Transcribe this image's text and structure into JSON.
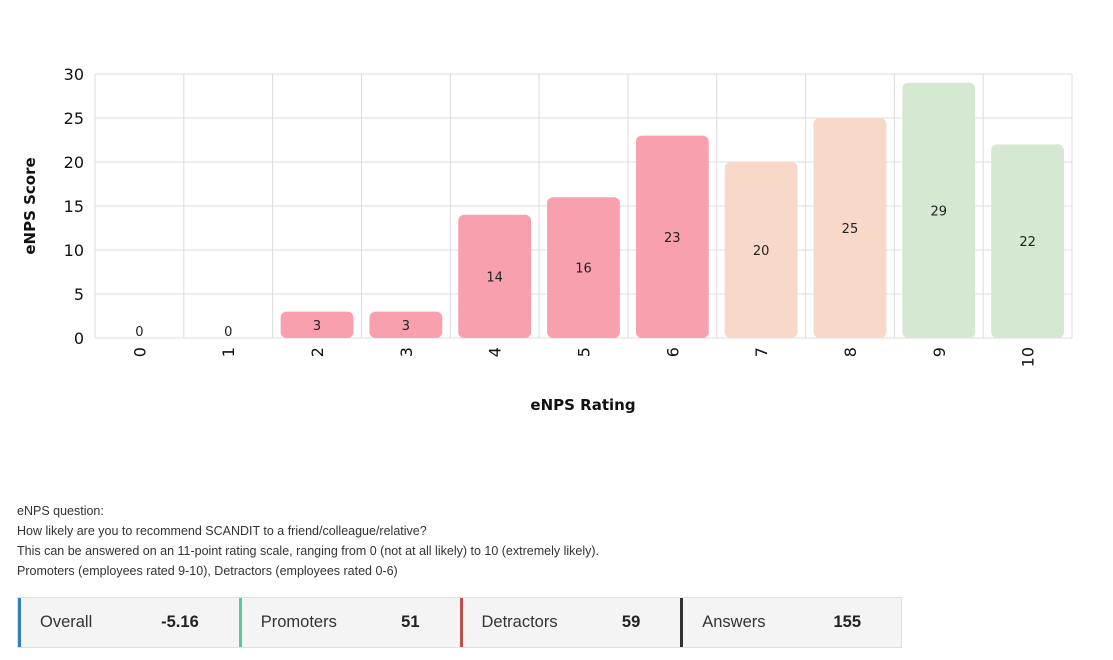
{
  "chart_data": {
    "type": "bar",
    "categories": [
      "0",
      "1",
      "2",
      "3",
      "4",
      "5",
      "6",
      "7",
      "8",
      "9",
      "10"
    ],
    "values": [
      0,
      0,
      3,
      3,
      14,
      16,
      23,
      20,
      25,
      29,
      22
    ],
    "data_labels": [
      "0",
      "0",
      "3",
      "3",
      "14",
      "16",
      "23",
      "20",
      "25",
      "29",
      "22"
    ],
    "bar_colors": [
      "#f9a0ae",
      "#f9a0ae",
      "#f9a0ae",
      "#f9a0ae",
      "#f9a0ae",
      "#f9a0ae",
      "#f9a0ae",
      "#f8d8c8",
      "#f8d8c8",
      "#d5e8d1",
      "#d5e8d1"
    ],
    "xlabel": "eNPS Rating",
    "ylabel": "eNPS Score",
    "ylim": [
      0,
      30
    ],
    "yticks": [
      0,
      5,
      10,
      15,
      20,
      25,
      30
    ],
    "grid": true,
    "x_tick_rotation": "vertical"
  },
  "description": {
    "line1": "eNPS question:",
    "line2": "How likely are you to recommend SCANDIT to a friend/colleague/relative?",
    "line3": "This can be answered on an 11-point rating scale, ranging from 0 (not at all likely) to 10 (extremely likely).",
    "line4": "Promoters (employees rated 9-10), Detractors (employees rated 0-6)"
  },
  "stats": {
    "overall": {
      "label": "Overall",
      "value": "-5.16",
      "color": "#2f7fc1"
    },
    "promoters": {
      "label": "Promoters",
      "value": "51",
      "color": "#5ac89a"
    },
    "detractors": {
      "label": "Detractors",
      "value": "59",
      "color": "#c0504d"
    },
    "answers": {
      "label": "Answers",
      "value": "155",
      "color": "#333333"
    }
  }
}
